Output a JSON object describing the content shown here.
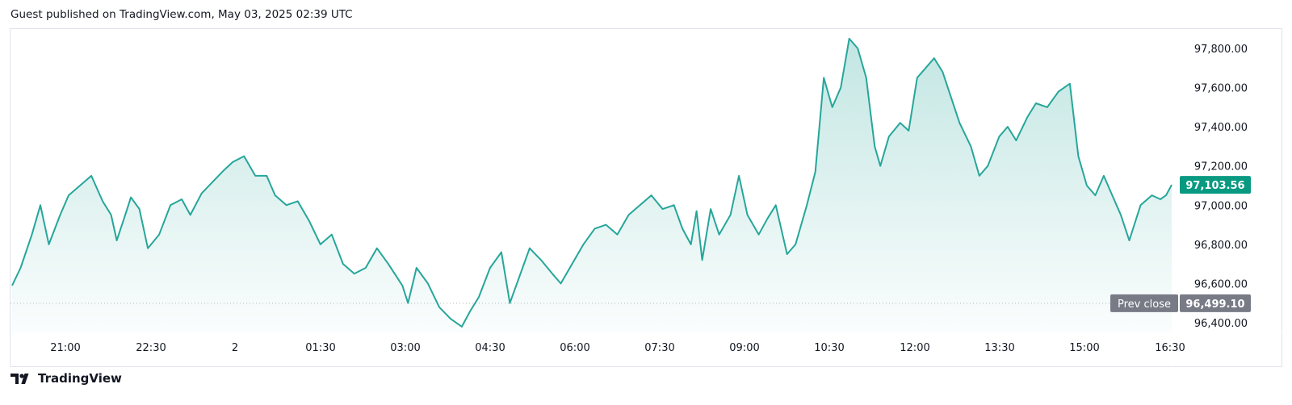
{
  "header": {
    "text": "Guest published on TradingView.com, May 03, 2025 02:39 UTC"
  },
  "footer": {
    "brand": "TradingView"
  },
  "colors": {
    "line": "#26a69a",
    "fill_top": "#26a69a",
    "price_label_bg": "#089981",
    "prev_close_bg": "#787b86",
    "grid": "#e0e3eb"
  },
  "chart_data": {
    "type": "area",
    "title": "",
    "xlabel": "",
    "ylabel": "",
    "ylim": [
      96360,
      97910
    ],
    "x_ticks": [
      "21:00",
      "22:30",
      "2",
      "01:30",
      "03:00",
      "04:30",
      "06:00",
      "07:30",
      "09:00",
      "10:30",
      "12:00",
      "13:30",
      "15:00",
      "16:30"
    ],
    "y_ticks": [
      "97,800.00",
      "97,600.00",
      "97,400.00",
      "97,200.00",
      "97,000.00",
      "96,800.00",
      "96,600.00",
      "96,400.00"
    ],
    "y_tick_values": [
      97800,
      97600,
      97400,
      97200,
      97000,
      96800,
      96600,
      96400
    ],
    "x_start_hours": 20.0,
    "x_end_hours": 40.5,
    "series": [
      {
        "name": "",
        "points": [
          [
            20.0,
            96590
          ],
          [
            20.15,
            96680
          ],
          [
            20.35,
            96850
          ],
          [
            20.5,
            97000
          ],
          [
            20.65,
            96800
          ],
          [
            20.85,
            96950
          ],
          [
            21.0,
            97050
          ],
          [
            21.2,
            97100
          ],
          [
            21.4,
            97150
          ],
          [
            21.6,
            97020
          ],
          [
            21.75,
            96950
          ],
          [
            21.85,
            96820
          ],
          [
            22.0,
            96950
          ],
          [
            22.1,
            97040
          ],
          [
            22.25,
            96980
          ],
          [
            22.4,
            96780
          ],
          [
            22.6,
            96850
          ],
          [
            22.8,
            97000
          ],
          [
            23.0,
            97030
          ],
          [
            23.15,
            96950
          ],
          [
            23.35,
            97060
          ],
          [
            23.55,
            97120
          ],
          [
            23.75,
            97180
          ],
          [
            23.9,
            97220
          ],
          [
            24.1,
            97250
          ],
          [
            24.3,
            97150
          ],
          [
            24.5,
            97150
          ],
          [
            24.65,
            97050
          ],
          [
            24.85,
            97000
          ],
          [
            25.05,
            97020
          ],
          [
            25.25,
            96920
          ],
          [
            25.45,
            96800
          ],
          [
            25.65,
            96850
          ],
          [
            25.85,
            96700
          ],
          [
            26.05,
            96650
          ],
          [
            26.25,
            96680
          ],
          [
            26.45,
            96780
          ],
          [
            26.65,
            96700
          ],
          [
            26.9,
            96590
          ],
          [
            27.0,
            96500
          ],
          [
            27.15,
            96680
          ],
          [
            27.35,
            96600
          ],
          [
            27.55,
            96480
          ],
          [
            27.75,
            96420
          ],
          [
            27.95,
            96380
          ],
          [
            28.1,
            96460
          ],
          [
            28.25,
            96530
          ],
          [
            28.45,
            96680
          ],
          [
            28.65,
            96760
          ],
          [
            28.8,
            96500
          ],
          [
            29.0,
            96660
          ],
          [
            29.15,
            96780
          ],
          [
            29.35,
            96720
          ],
          [
            29.55,
            96650
          ],
          [
            29.7,
            96600
          ],
          [
            29.9,
            96700
          ],
          [
            30.1,
            96800
          ],
          [
            30.3,
            96880
          ],
          [
            30.5,
            96900
          ],
          [
            30.7,
            96850
          ],
          [
            30.9,
            96950
          ],
          [
            31.1,
            97000
          ],
          [
            31.3,
            97050
          ],
          [
            31.5,
            96980
          ],
          [
            31.7,
            97000
          ],
          [
            31.85,
            96880
          ],
          [
            32.0,
            96800
          ],
          [
            32.1,
            96970
          ],
          [
            32.2,
            96720
          ],
          [
            32.35,
            96980
          ],
          [
            32.5,
            96850
          ],
          [
            32.7,
            96950
          ],
          [
            32.85,
            97150
          ],
          [
            33.0,
            96950
          ],
          [
            33.2,
            96850
          ],
          [
            33.35,
            96930
          ],
          [
            33.5,
            97000
          ],
          [
            33.7,
            96750
          ],
          [
            33.85,
            96800
          ],
          [
            34.05,
            97000
          ],
          [
            34.2,
            97170
          ],
          [
            34.35,
            97650
          ],
          [
            34.5,
            97500
          ],
          [
            34.65,
            97600
          ],
          [
            34.8,
            97850
          ],
          [
            34.95,
            97800
          ],
          [
            35.1,
            97650
          ],
          [
            35.25,
            97300
          ],
          [
            35.35,
            97200
          ],
          [
            35.5,
            97350
          ],
          [
            35.7,
            97420
          ],
          [
            35.85,
            97380
          ],
          [
            36.0,
            97650
          ],
          [
            36.15,
            97700
          ],
          [
            36.3,
            97750
          ],
          [
            36.45,
            97680
          ],
          [
            36.6,
            97550
          ],
          [
            36.75,
            97420
          ],
          [
            36.95,
            97300
          ],
          [
            37.1,
            97150
          ],
          [
            37.25,
            97200
          ],
          [
            37.45,
            97350
          ],
          [
            37.6,
            97400
          ],
          [
            37.75,
            97330
          ],
          [
            37.95,
            97450
          ],
          [
            38.1,
            97520
          ],
          [
            38.3,
            97500
          ],
          [
            38.5,
            97580
          ],
          [
            38.7,
            97620
          ],
          [
            38.85,
            97250
          ],
          [
            39.0,
            97100
          ],
          [
            39.15,
            97050
          ],
          [
            39.3,
            97150
          ],
          [
            39.45,
            97050
          ],
          [
            39.6,
            96950
          ],
          [
            39.75,
            96820
          ],
          [
            39.95,
            97000
          ],
          [
            40.15,
            97050
          ],
          [
            40.3,
            97030
          ],
          [
            40.4,
            97050
          ],
          [
            40.5,
            97103.56
          ]
        ]
      }
    ],
    "last_price_label": "97,103.56",
    "last_price_value": 97103.56,
    "prev_close_label": "Prev close",
    "prev_close_value_label": "96,499.10",
    "prev_close_value": 96499.1,
    "grid": false
  }
}
